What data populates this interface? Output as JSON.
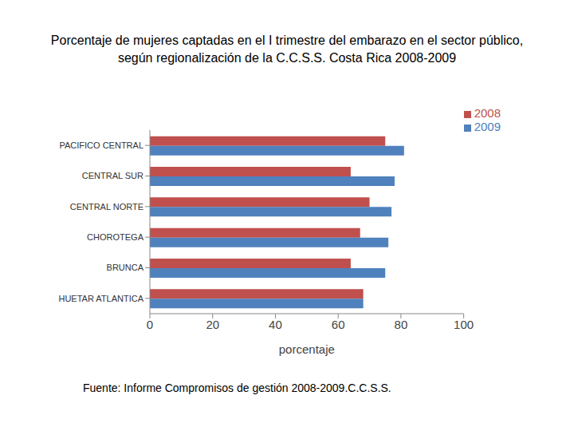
{
  "chart_data": {
    "type": "bar",
    "orientation": "horizontal",
    "title": "Porcentaje de mujeres captadas en el I trimestre del embarazo en el sector público, según regionalización de la C.C.S.S. Costa Rica 2008-2009",
    "x_label": "porcentaje",
    "annotations": [
      "Fuente: Informe Compromisos de gestión 2008-2009.C.C.S.S."
    ],
    "categories": [
      "PACIFICO CENTRAL",
      "CENTRAL SUR",
      "CENTRAL NORTE",
      "CHOROTEGA",
      "BRUNCA",
      "HUETAR ATLANTICA"
    ],
    "series": [
      {
        "name": "2008",
        "color": "#c0504d",
        "values": [
          75,
          64,
          70,
          67,
          64,
          68
        ]
      },
      {
        "name": "2009",
        "color": "#4f81bd",
        "values": [
          81,
          78,
          77,
          76,
          75,
          68
        ]
      }
    ],
    "xlim": [
      0,
      100
    ],
    "xticks": [
      0,
      20,
      40,
      60,
      80,
      100
    ],
    "legend": "right",
    "grid": false
  }
}
